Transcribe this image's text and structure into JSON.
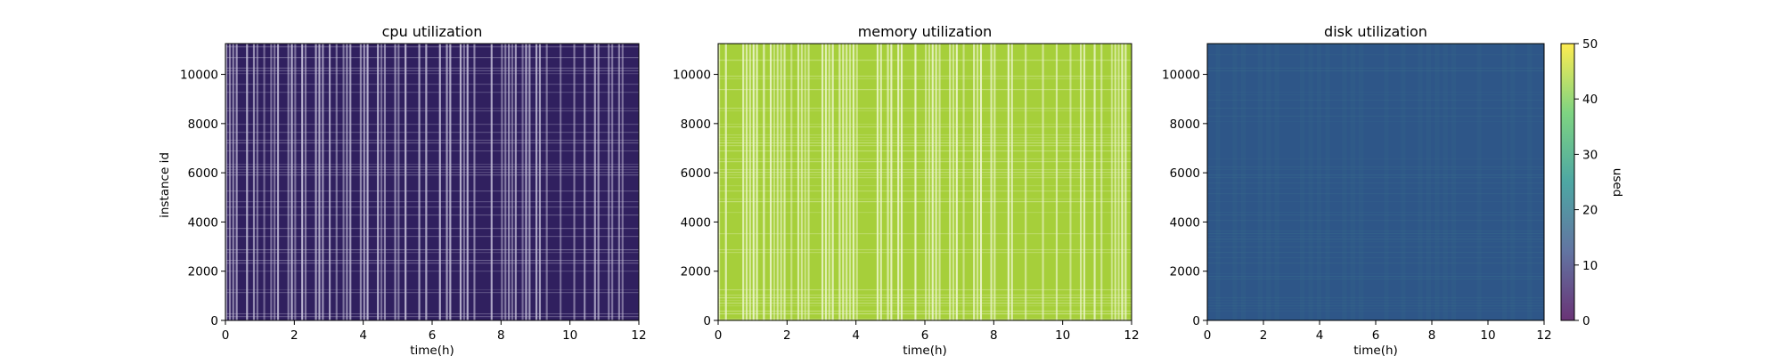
{
  "chart_data": [
    {
      "type": "heatmap",
      "title": "cpu utilization",
      "xlabel": "time(h)",
      "ylabel": "instance id",
      "xlim": [
        0,
        12
      ],
      "ylim": [
        0,
        11250
      ],
      "xticks": [
        "0",
        "2",
        "4",
        "6",
        "8",
        "10",
        "12"
      ],
      "yticks": [
        "0",
        "2000",
        "4000",
        "6000",
        "8000",
        "10000"
      ],
      "value_level": 1,
      "base_color": "#30205f",
      "stripe_color": "#c9c4dc"
    },
    {
      "type": "heatmap",
      "title": "memory utilization",
      "xlabel": "time(h)",
      "ylabel": "",
      "xlim": [
        0,
        12
      ],
      "ylim": [
        0,
        11250
      ],
      "xticks": [
        "0",
        "2",
        "4",
        "6",
        "8",
        "10",
        "12"
      ],
      "yticks": [
        "0",
        "2000",
        "4000",
        "6000",
        "8000",
        "10000"
      ],
      "value_level": 43,
      "base_color": "#a6cf3a",
      "stripe_color": "#eef6d0"
    },
    {
      "type": "heatmap",
      "title": "disk utilization",
      "xlabel": "time(h)",
      "ylabel": "",
      "xlim": [
        0,
        12
      ],
      "ylim": [
        0,
        11250
      ],
      "xticks": [
        "0",
        "2",
        "4",
        "6",
        "8",
        "10",
        "12"
      ],
      "yticks": [
        "0",
        "2000",
        "4000",
        "6000",
        "8000",
        "10000"
      ],
      "value_level": 14,
      "base_color": "#2e5688",
      "stripe_color": "#3a6e8c"
    }
  ],
  "colorbar": {
    "label": "used",
    "range": [
      0,
      50
    ],
    "ticks": [
      "0",
      "10",
      "20",
      "30",
      "40",
      "50"
    ],
    "colors": [
      "#440154",
      "#3b528b",
      "#21918c",
      "#5ec962",
      "#fde725"
    ]
  }
}
